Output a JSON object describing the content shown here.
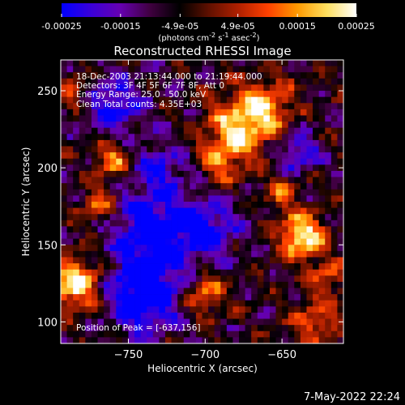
{
  "colorbar": {
    "ticks": [
      {
        "value": -0.00025,
        "label": "-0.00025"
      },
      {
        "value": -0.00015,
        "label": "-0.00015"
      },
      {
        "value": -4.9e-05,
        "label": "-4.9e-05"
      },
      {
        "value": 4.9e-05,
        "label": "4.9e-05"
      },
      {
        "value": 0.00015,
        "label": "0.00015"
      },
      {
        "value": 0.00025,
        "label": "0.00025"
      }
    ],
    "range": [
      -0.00025,
      0.00025
    ],
    "units_main": "(photons cm",
    "units_sup1": "-2",
    "units_mid1": " s",
    "units_sup2": "-1",
    "units_mid2": " asec",
    "units_sup3": "-2",
    "units_end": ")",
    "colors": [
      "#0000ff",
      "#3a00d8",
      "#6600b0",
      "#400040",
      "#000000",
      "#601000",
      "#b02000",
      "#ff4000",
      "#ff9a00",
      "#ffe060",
      "#ffffff"
    ]
  },
  "chart_data": {
    "type": "heatmap",
    "title": "Reconstructed RHESSI Image",
    "xlabel": "Heliocentric X (arcsec)",
    "ylabel": "Heliocentric Y (arcsec)",
    "xlim": [
      -794,
      -610
    ],
    "ylim": [
      86,
      270
    ],
    "xticks": [
      {
        "value": -750,
        "label": "−750"
      },
      {
        "value": -700,
        "label": "−700"
      },
      {
        "value": -650,
        "label": "−650"
      }
    ],
    "yticks": [
      {
        "value": 100,
        "label": "100"
      },
      {
        "value": 150,
        "label": "150"
      },
      {
        "value": 200,
        "label": "200"
      },
      {
        "value": 250,
        "label": "250"
      }
    ],
    "peak": {
      "x": -637,
      "y": 156
    },
    "grid_size": 46,
    "hotspots": [
      {
        "x": -637,
        "y": 156,
        "s": 10,
        "a": 1.0
      },
      {
        "x": -678,
        "y": 226,
        "s": 14,
        "a": 0.75
      },
      {
        "x": -660,
        "y": 240,
        "s": 12,
        "a": 0.65
      },
      {
        "x": -690,
        "y": 205,
        "s": 10,
        "a": 0.5
      },
      {
        "x": -785,
        "y": 125,
        "s": 12,
        "a": 0.9
      },
      {
        "x": -770,
        "y": 175,
        "s": 8,
        "a": 0.55
      },
      {
        "x": -760,
        "y": 205,
        "s": 9,
        "a": 0.6
      },
      {
        "x": -700,
        "y": 118,
        "s": 9,
        "a": 0.6
      },
      {
        "x": -628,
        "y": 100,
        "s": 10,
        "a": 0.55
      },
      {
        "x": -620,
        "y": 130,
        "s": 8,
        "a": 0.5
      },
      {
        "x": -785,
        "y": 250,
        "s": 8,
        "a": 0.45
      },
      {
        "x": -650,
        "y": 185,
        "s": 8,
        "a": 0.45
      }
    ],
    "coldspots": [
      {
        "x": -740,
        "y": 118,
        "s": 16,
        "a": -0.9
      },
      {
        "x": -735,
        "y": 160,
        "s": 18,
        "a": -0.7
      },
      {
        "x": -700,
        "y": 160,
        "s": 14,
        "a": -0.6
      },
      {
        "x": -760,
        "y": 240,
        "s": 14,
        "a": -0.55
      },
      {
        "x": -640,
        "y": 210,
        "s": 10,
        "a": -0.5
      },
      {
        "x": -730,
        "y": 200,
        "s": 12,
        "a": -0.45
      }
    ]
  },
  "info": {
    "time_range": "18-Dec-2003 21:13:44.000 to 21:19:44.000",
    "detectors": "Detectors: 3F 4F 5F 6F 7F 8F, Att 0",
    "energy": "Energy Range: 25.0 - 50.0 keV",
    "clean": "Clean     Total counts: 4.35E+03",
    "peak_text": "Position of Peak = [-637,156]"
  },
  "footer": {
    "date": "7-May-2022 22:24"
  }
}
